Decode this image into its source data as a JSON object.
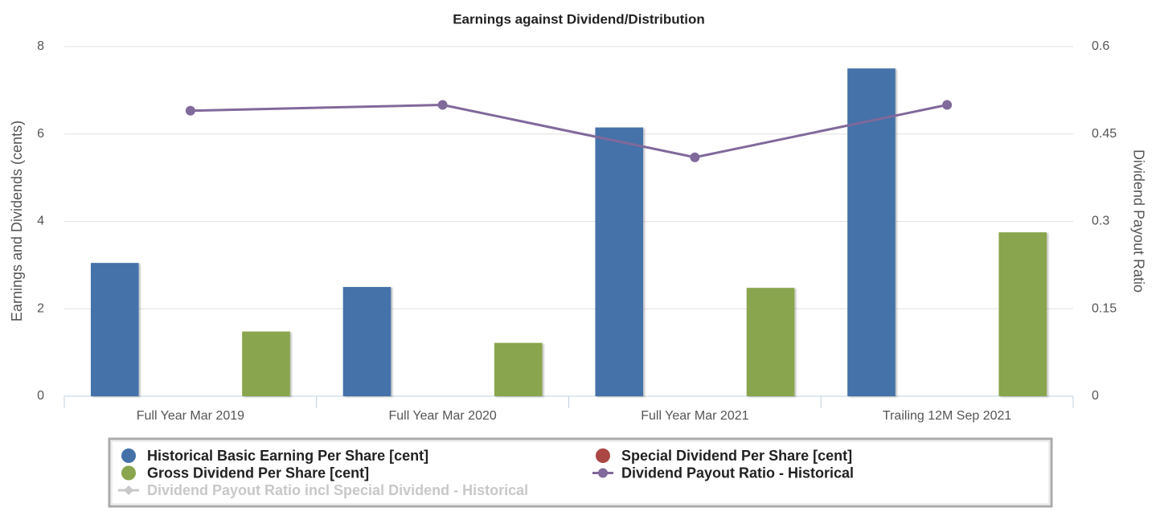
{
  "chart_data": {
    "type": "bar",
    "title": "Earnings against Dividend/Distribution",
    "y_label": "Earnings and Dividends (cents)",
    "y2_label": "Dividend Payout Ratio",
    "categories": [
      "Full Year Mar 2019",
      "Full Year Mar 2020",
      "Full Year Mar 2021",
      "Trailing 12M Sep 2021"
    ],
    "ylim": [
      0,
      8
    ],
    "yticks": [
      0,
      2,
      4,
      6,
      8
    ],
    "y2lim": [
      0,
      0.6
    ],
    "y2ticks": [
      0,
      0.15,
      0.3,
      0.45,
      0.6
    ],
    "grid": true,
    "legend": "bottom",
    "series": [
      {
        "name": "Historical Basic Earning Per Share [cent]",
        "type": "bar",
        "color": "#4472a8",
        "values": [
          3.05,
          2.5,
          6.15,
          7.5
        ]
      },
      {
        "name": "Special Dividend Per Share [cent]",
        "type": "bar",
        "color": "#aa4643",
        "values": [
          0,
          0,
          0,
          0
        ]
      },
      {
        "name": "Gross Dividend Per Share [cent]",
        "type": "bar",
        "color": "#89a54e",
        "values": [
          1.48,
          1.22,
          2.48,
          3.75
        ]
      },
      {
        "name": "Dividend Payout Ratio - Historical",
        "type": "line",
        "axis": "y2",
        "color": "#80699b",
        "values": [
          0.49,
          0.5,
          0.41,
          0.5
        ]
      },
      {
        "name": "Dividend Payout Ratio incl Special Dividend - Historical",
        "type": "line",
        "axis": "y2",
        "color": "#c8c8c8",
        "visible": false,
        "values": [
          null,
          null,
          null,
          null
        ]
      }
    ]
  }
}
